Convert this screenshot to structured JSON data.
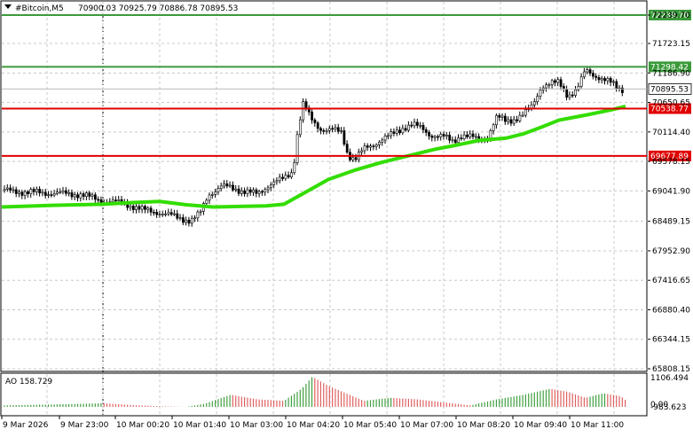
{
  "header": {
    "symbol": "#Bitcoin,M5",
    "ohlc": "70900.03 70925.79 70886.78 70895.53"
  },
  "price_axis": {
    "ticks": [
      "72239.70",
      "71723.15",
      "71186.90",
      "70650.65",
      "70114.40",
      "69578.15",
      "69041.90",
      "68489.15",
      "67952.90",
      "67416.65",
      "66880.40",
      "66344.15",
      "65808.15"
    ]
  },
  "price_lines": [
    {
      "value": 72239.7,
      "label": "72239.70",
      "color": "#3a9a3a"
    },
    {
      "value": 71298.42,
      "label": "71298.42",
      "color": "#3a9a3a"
    },
    {
      "value": 70538.77,
      "label": "70538.77",
      "color": "#e00000"
    },
    {
      "value": 69677.89,
      "label": "69677.89",
      "color": "#e00000"
    }
  ],
  "current_price": {
    "value": 70895.53,
    "label": "70895.53"
  },
  "indicator": {
    "label": "AO 158.729",
    "ticks": [
      "1106.494",
      "0.00",
      "-983.623"
    ]
  },
  "time_axis": {
    "labels": [
      "9 Mar 2026",
      "9 Mar 23:00",
      "10 Mar 00:20",
      "10 Mar 01:40",
      "10 Mar 03:00",
      "10 Mar 04:20",
      "10 Mar 05:40",
      "10 Mar 07:00",
      "10 Mar 08:20",
      "10 Mar 09:40",
      "10 Mar 11:00"
    ]
  },
  "colors": {
    "ma_line": "#33dd00",
    "support_resistance_red": "#e00000",
    "target_green": "#3a9a3a",
    "ao_up": "#e08080",
    "ao_down": "#e08080",
    "candle": "#000000"
  }
}
